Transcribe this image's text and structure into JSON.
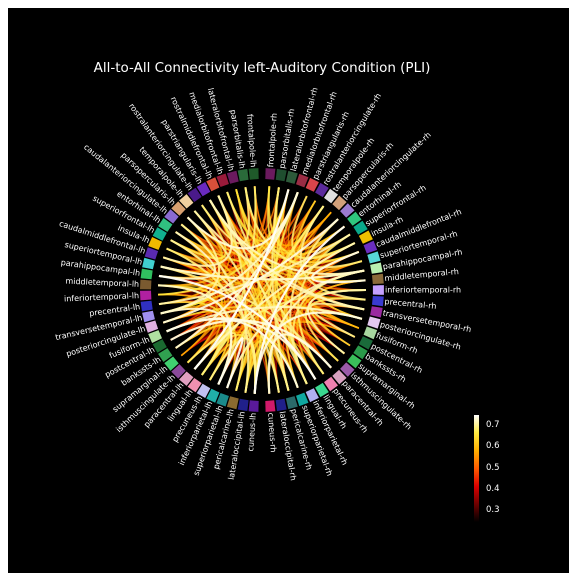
{
  "title": "All-to-All Connectivity left-Auditory Condition (PLI)",
  "colors": {
    "background": "#000000",
    "text": "#ffffff",
    "colormap": [
      "#000000",
      "#6e0000",
      "#d90000",
      "#ff5a00",
      "#ffae00",
      "#ffea40",
      "#ffffff"
    ]
  },
  "colorbar": {
    "min": 0.25,
    "max": 0.75,
    "ticks": [
      "0.7",
      "0.6",
      "0.5",
      "0.4",
      "0.3"
    ],
    "tick_values": [
      0.7,
      0.6,
      0.5,
      0.4,
      0.3
    ]
  },
  "nodes_rh": [
    {
      "label": "frontalpole-rh",
      "color": "#6b1a5e"
    },
    {
      "label": "parsorbitalis-rh",
      "color": "#1f4e2f"
    },
    {
      "label": "lateralorbitofrontal-rh",
      "color": "#2d5a3a"
    },
    {
      "label": "medialorbitofrontal-rh",
      "color": "#9a2c44"
    },
    {
      "label": "parstriangularis-rh",
      "color": "#d8454b"
    },
    {
      "label": "rostralanteriorcingulate-rh",
      "color": "#5b2a9c"
    },
    {
      "label": "temporalpole-rh",
      "color": "#e0e0e0"
    },
    {
      "label": "parsopercularis-rh",
      "color": "#d2a07a"
    },
    {
      "label": "caudalanteriorcingulate-rh",
      "color": "#9b7bd0"
    },
    {
      "label": "entorhinal-rh",
      "color": "#2fc57e"
    },
    {
      "label": "superiorfrontal-rh",
      "color": "#0aa88a"
    },
    {
      "label": "insula-rh",
      "color": "#f0c000"
    },
    {
      "label": "caudalmiddlefrontal-rh",
      "color": "#6a2ec0"
    },
    {
      "label": "superiortemporal-rh",
      "color": "#57d6d6"
    },
    {
      "label": "parahippocampal-rh",
      "color": "#b9f0b0"
    },
    {
      "label": "middletemporal-rh",
      "color": "#8a6a3a"
    },
    {
      "label": "inferiortemporal-rh",
      "color": "#c4a0ff"
    },
    {
      "label": "precentral-rh",
      "color": "#3a3ad0"
    },
    {
      "label": "transversetemporal-rh",
      "color": "#9a2aa0"
    },
    {
      "label": "posteriorcingulate-rh",
      "color": "#e4c8f0"
    },
    {
      "label": "fusiform-rh",
      "color": "#a8d6a0"
    },
    {
      "label": "postcentral-rh",
      "color": "#1a6a3a"
    },
    {
      "label": "bankssts-rh",
      "color": "#2a9a4a"
    },
    {
      "label": "supramarginal-rh",
      "color": "#3ac05a"
    },
    {
      "label": "isthmuscingulate-rh",
      "color": "#9a5aa8"
    },
    {
      "label": "paracentral-rh",
      "color": "#d8a0c0"
    },
    {
      "label": "precuneus-rh",
      "color": "#f080b0"
    },
    {
      "label": "lingual-rh",
      "color": "#3ad890"
    },
    {
      "label": "inferiorparietal-rh",
      "color": "#b0b0f0"
    },
    {
      "label": "superiorparietal-rh",
      "color": "#10a8a0"
    },
    {
      "label": "pericalcarine-rh",
      "color": "#2a6a6a"
    },
    {
      "label": "lateraloccipital-rh",
      "color": "#20208a"
    },
    {
      "label": "cuneus-rh",
      "color": "#d01a6a"
    }
  ],
  "nodes_lh": [
    {
      "label": "frontalpole-lh",
      "color": "#1f5a2a"
    },
    {
      "label": "parsorbitalis-lh",
      "color": "#2a6a3a"
    },
    {
      "label": "lateralorbitofrontal-lh",
      "color": "#6b1a5e"
    },
    {
      "label": "medialorbitofrontal-lh",
      "color": "#9a1a3a"
    },
    {
      "label": "rostralmiddlefrontal-lh",
      "color": "#d8503a"
    },
    {
      "label": "parstriangularis-lh",
      "color": "#6a2ac0"
    },
    {
      "label": "rostralanteriorcingulate-lh",
      "color": "#4a1a8a"
    },
    {
      "label": "temporalpole-lh",
      "color": "#f0d0a0"
    },
    {
      "label": "parsopercularis-lh",
      "color": "#d8a070"
    },
    {
      "label": "caudalanteriorcingulate-lh",
      "color": "#8a6ad0"
    },
    {
      "label": "entorhinal-lh",
      "color": "#30c080"
    },
    {
      "label": "superiorfrontal-lh",
      "color": "#10b090"
    },
    {
      "label": "insula-lh",
      "color": "#f0b800"
    },
    {
      "label": "caudalmiddlefrontal-lh",
      "color": "#5a2ab0"
    },
    {
      "label": "superiortemporal-lh",
      "color": "#40d0d0"
    },
    {
      "label": "parahippocampal-lh",
      "color": "#30c060"
    },
    {
      "label": "middletemporal-lh",
      "color": "#7a5a30"
    },
    {
      "label": "inferiortemporal-lh",
      "color": "#b020a0"
    },
    {
      "label": "precentral-lh",
      "color": "#3030c0"
    },
    {
      "label": "transversetemporal-lh",
      "color": "#a090f0"
    },
    {
      "label": "posteriorcingulate-lh",
      "color": "#e0b0e0"
    },
    {
      "label": "fusiform-lh",
      "color": "#b0e0a0"
    },
    {
      "label": "postcentral-lh",
      "color": "#1a6a30"
    },
    {
      "label": "bankssts-lh",
      "color": "#30a050"
    },
    {
      "label": "supramarginal-lh",
      "color": "#40d070"
    },
    {
      "label": "isthmuscingulate-lh",
      "color": "#8a4a9a"
    },
    {
      "label": "paracentral-lh",
      "color": "#e0a0c0"
    },
    {
      "label": "lingual-lh",
      "color": "#f090b0"
    },
    {
      "label": "precuneus-lh",
      "color": "#c0c0f0"
    },
    {
      "label": "inferiorparietal-lh",
      "color": "#20b0a8"
    },
    {
      "label": "superiorparietal-lh",
      "color": "#1a8a8a"
    },
    {
      "label": "pericalcarine-lh",
      "color": "#8a6a30"
    },
    {
      "label": "lateraloccipital-lh",
      "color": "#20208a"
    },
    {
      "label": "cuneus-lh",
      "color": "#5a1a9a"
    }
  ]
}
